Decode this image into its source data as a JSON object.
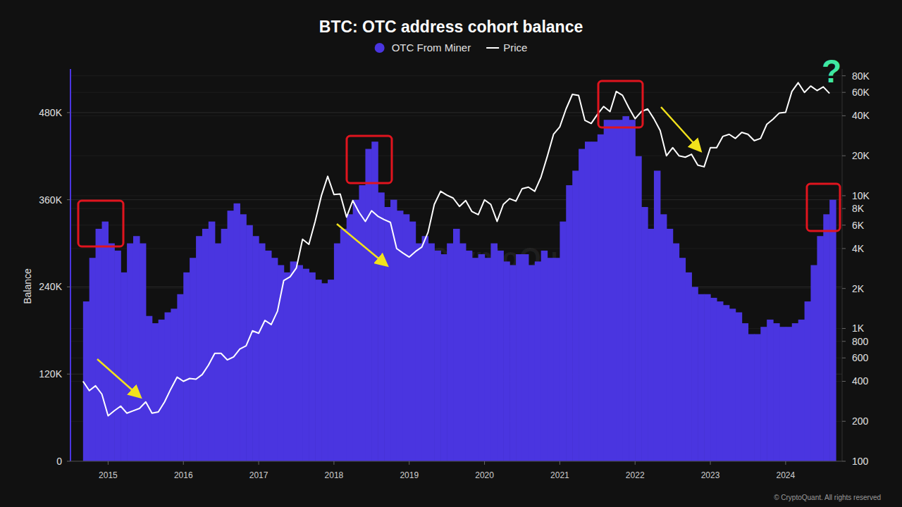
{
  "chart_data": {
    "type": "bar",
    "title": "BTC: OTC address cohort balance",
    "y_label": "Balance",
    "annotation": "?",
    "watermark": "CryptoQuant",
    "footer": "© CryptoQuant. All rights reserved",
    "legend": "top",
    "grid": true,
    "log": "y2",
    "x": [
      2014.667,
      2014.75,
      2014.833,
      2014.917,
      2015,
      2015.083,
      2015.167,
      2015.25,
      2015.333,
      2015.417,
      2015.5,
      2015.583,
      2015.667,
      2015.75,
      2015.833,
      2015.917,
      2016,
      2016.083,
      2016.167,
      2016.25,
      2016.333,
      2016.417,
      2016.5,
      2016.583,
      2016.667,
      2016.75,
      2016.833,
      2016.917,
      2017,
      2017.083,
      2017.167,
      2017.25,
      2017.333,
      2017.417,
      2017.5,
      2017.583,
      2017.667,
      2017.75,
      2017.833,
      2017.917,
      2018,
      2018.083,
      2018.167,
      2018.25,
      2018.333,
      2018.417,
      2018.5,
      2018.583,
      2018.667,
      2018.75,
      2018.833,
      2018.917,
      2019,
      2019.083,
      2019.167,
      2019.25,
      2019.333,
      2019.417,
      2019.5,
      2019.583,
      2019.667,
      2019.75,
      2019.833,
      2019.917,
      2020,
      2020.083,
      2020.167,
      2020.25,
      2020.333,
      2020.417,
      2020.5,
      2020.583,
      2020.667,
      2020.75,
      2020.833,
      2020.917,
      2021,
      2021.083,
      2021.167,
      2021.25,
      2021.333,
      2021.417,
      2021.5,
      2021.583,
      2021.667,
      2021.75,
      2021.833,
      2021.917,
      2022,
      2022.083,
      2022.167,
      2022.25,
      2022.333,
      2022.417,
      2022.5,
      2022.583,
      2022.667,
      2022.75,
      2022.833,
      2022.917,
      2023,
      2023.083,
      2023.167,
      2023.25,
      2023.333,
      2023.417,
      2023.5,
      2023.583,
      2023.667,
      2023.75,
      2023.833,
      2023.917,
      2024,
      2024.083,
      2024.167,
      2024.25,
      2024.333,
      2024.417,
      2024.5,
      2024.583
    ],
    "xlim": [
      2014.5,
      2024.75
    ],
    "xticks": [
      2015,
      2016,
      2017,
      2018,
      2019,
      2020,
      2021,
      2022,
      2023,
      2024
    ],
    "ylim": [
      0,
      540000
    ],
    "yticks": [
      0,
      {
        "value": 120000,
        "label": "120K"
      },
      {
        "value": 240000,
        "label": "240K"
      },
      {
        "value": 360000,
        "label": "360K"
      },
      {
        "value": 480000,
        "label": "480K"
      }
    ],
    "y2lim": [
      100,
      90000
    ],
    "y2ticks": [
      100,
      200,
      400,
      600,
      800,
      {
        "value": 1000,
        "label": "1K"
      },
      {
        "value": 2000,
        "label": "2K"
      },
      {
        "value": 4000,
        "label": "4K"
      },
      {
        "value": 6000,
        "label": "6K"
      },
      {
        "value": 8000,
        "label": "8K"
      },
      {
        "value": 10000,
        "label": "10K"
      },
      {
        "value": 20000,
        "label": "20K"
      },
      {
        "value": 40000,
        "label": "40K"
      },
      {
        "value": 60000,
        "label": "60K"
      },
      {
        "value": 80000,
        "label": "80K"
      }
    ],
    "series": [
      {
        "name": "OTC From Miner",
        "type": "bar",
        "color": "#4a35e0",
        "values": [
          220000,
          280000,
          320000,
          330000,
          300000,
          290000,
          260000,
          300000,
          310000,
          300000,
          200000,
          190000,
          195000,
          205000,
          210000,
          230000,
          260000,
          280000,
          310000,
          320000,
          330000,
          300000,
          320000,
          345000,
          355000,
          340000,
          325000,
          310000,
          300000,
          290000,
          280000,
          270000,
          260000,
          275000,
          270000,
          265000,
          260000,
          250000,
          245000,
          250000,
          300000,
          320000,
          340000,
          360000,
          380000,
          430000,
          440000,
          370000,
          350000,
          360000,
          345000,
          340000,
          330000,
          300000,
          310000,
          300000,
          290000,
          285000,
          300000,
          320000,
          300000,
          290000,
          280000,
          285000,
          280000,
          300000,
          290000,
          275000,
          270000,
          285000,
          285000,
          270000,
          275000,
          290000,
          280000,
          280000,
          330000,
          380000,
          400000,
          430000,
          440000,
          440000,
          450000,
          470000,
          470000,
          470000,
          475000,
          470000,
          420000,
          350000,
          320000,
          400000,
          340000,
          320000,
          300000,
          280000,
          260000,
          240000,
          230000,
          230000,
          225000,
          220000,
          215000,
          210000,
          205000,
          190000,
          175000,
          175000,
          185000,
          195000,
          190000,
          185000,
          185000,
          190000,
          195000,
          220000,
          270000,
          310000,
          340000,
          360000
        ]
      },
      {
        "name": "Price",
        "type": "line",
        "axis": "y2",
        "color": "#ffffff",
        "values": [
          400,
          340,
          370,
          320,
          220,
          240,
          260,
          230,
          240,
          250,
          280,
          230,
          235,
          280,
          350,
          430,
          400,
          420,
          415,
          450,
          530,
          650,
          650,
          580,
          610,
          700,
          740,
          960,
          920,
          1150,
          1070,
          1350,
          2300,
          2450,
          2850,
          4700,
          4300,
          6400,
          10000,
          14000,
          10200,
          10300,
          6900,
          9200,
          7500,
          6400,
          7700,
          7000,
          6600,
          6300,
          4000,
          3700,
          3450,
          3800,
          4100,
          5300,
          8600,
          10800,
          10100,
          9600,
          8300,
          9200,
          7600,
          7200,
          9300,
          8600,
          6400,
          8600,
          9500,
          9100,
          11300,
          11600,
          10800,
          13800,
          19700,
          29000,
          33000,
          45000,
          58000,
          57000,
          37000,
          35000,
          41000,
          47000,
          43000,
          61000,
          57000,
          46000,
          38000,
          43000,
          45000,
          38000,
          31000,
          20000,
          23000,
          20000,
          19500,
          20500,
          17000,
          16500,
          23000,
          23000,
          28000,
          29000,
          27000,
          30000,
          29000,
          26000,
          27000,
          34500,
          37700,
          42000,
          42500,
          61000,
          71000,
          60000,
          67000,
          62000,
          66000,
          59000
        ]
      }
    ]
  }
}
